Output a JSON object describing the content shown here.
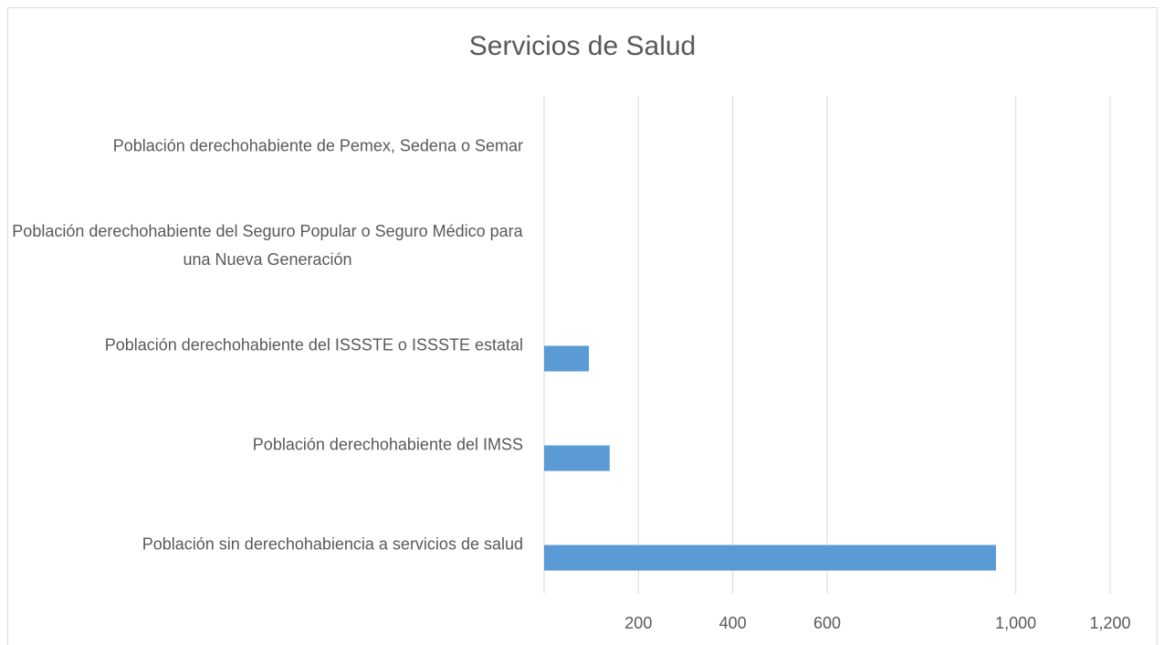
{
  "chart_data": {
    "type": "bar",
    "orientation": "horizontal",
    "title": "Servicios de Salud",
    "categories": [
      "Población derechohabiente de Pemex, Sedena o Semar",
      "Población derechohabiente del Seguro Popular o Seguro Médico para una Nueva Generación",
      "Población derechohabiente del ISSSTE o ISSSTE estatal",
      "Población derechohabiente del IMSS",
      "Población sin derechohabiencia a servicios de salud"
    ],
    "values": [
      0,
      0,
      95,
      139,
      958
    ],
    "color": "#5b9bd5",
    "xlim": [
      0,
      1200
    ],
    "xticks": [
      200,
      400,
      600,
      {
        "value": 1000,
        "label": "1,000"
      },
      {
        "value": 1200,
        "label": "1,200"
      }
    ],
    "grid": true
  }
}
